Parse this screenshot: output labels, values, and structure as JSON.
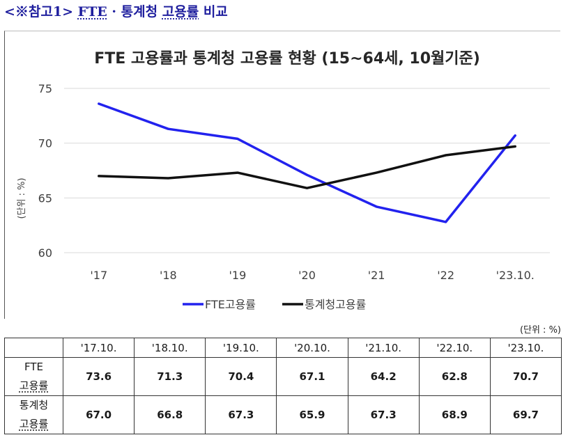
{
  "heading": {
    "prefix": "<※참고1>",
    "fte": "FTE",
    "sep": "·",
    "middle": "통계청",
    "underlined": "고용률",
    "suffix": "비교"
  },
  "colors": {
    "fte_line": "#2222ee",
    "stat_line": "#111111",
    "grid": "#d9d9d9"
  },
  "chart_data": {
    "type": "line",
    "title": "FTE 고용률과 통계청 고용률 현황 (15~64세, 10월기준)",
    "categories": [
      "'17",
      "'18",
      "'19",
      "'20",
      "'21",
      "'22",
      "'23.10."
    ],
    "ylabel": "(단위 : %)",
    "xlabel": "",
    "ylim": [
      60,
      75
    ],
    "yticks": [
      60,
      65,
      70,
      75
    ],
    "grid": true,
    "legend_position": "bottom",
    "series": [
      {
        "name": "FTE고용률",
        "values": [
          73.6,
          71.3,
          70.4,
          67.1,
          64.2,
          62.8,
          70.7
        ]
      },
      {
        "name": "통계청고용률",
        "values": [
          67.0,
          66.8,
          67.3,
          65.9,
          67.3,
          68.9,
          69.7
        ]
      }
    ]
  },
  "table": {
    "unit": "(단위 : %)",
    "columns": [
      "'17.10.",
      "'18.10.",
      "'19.10.",
      "'20.10.",
      "'21.10.",
      "'22.10.",
      "'23.10."
    ],
    "rows": [
      {
        "label_top": "FTE",
        "label_bottom": "고용률",
        "values": [
          "73.6",
          "71.3",
          "70.4",
          "67.1",
          "64.2",
          "62.8",
          "70.7"
        ]
      },
      {
        "label_top": "통계청",
        "label_bottom": "고용률",
        "values": [
          "67.0",
          "66.8",
          "67.3",
          "65.9",
          "67.3",
          "68.9",
          "69.7"
        ]
      }
    ]
  }
}
